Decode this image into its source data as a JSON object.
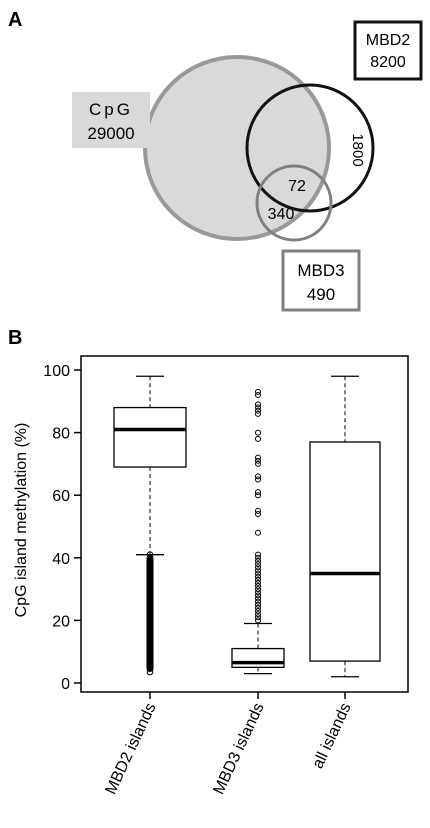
{
  "panels": {
    "a_label": "A",
    "b_label": "B"
  },
  "venn": {
    "cpg": {
      "name": "CpG",
      "count": "29000"
    },
    "mbd2": {
      "name": "MBD2",
      "count": "8200"
    },
    "mbd3": {
      "name": "MBD3",
      "count": "490"
    },
    "regions": {
      "mbd2_only": "1800",
      "triple": "72",
      "cpg_mbd3": "340"
    },
    "colors": {
      "cpg_fill": "#d9d9d9",
      "cpg_stroke": "#999999",
      "mbd2_stroke": "#111111",
      "mbd3_stroke": "#808080"
    }
  },
  "chart_data": {
    "type": "boxplot",
    "ylabel": "CpG island methylation (%)",
    "ylim": [
      0,
      100
    ],
    "yticks": [
      "0",
      "20",
      "40",
      "60",
      "80",
      "100"
    ],
    "categories": [
      "MBD2 islands",
      "MBD3 islands",
      "all islands"
    ],
    "boxes": [
      {
        "name": "MBD2 islands",
        "whisker_low": 41,
        "q1": 69,
        "median": 81,
        "q3": 88,
        "whisker_high": 98,
        "outliers_range": [
          3.5,
          41
        ]
      },
      {
        "name": "MBD3 islands",
        "whisker_low": 3,
        "q1": 5,
        "median": 6.5,
        "q3": 11,
        "whisker_high": 19,
        "outliers": [
          20,
          21,
          22,
          23,
          24,
          25,
          26,
          27,
          28,
          29,
          30,
          31,
          32,
          33,
          34,
          35,
          36,
          37,
          38,
          39,
          40,
          41,
          48,
          54,
          55,
          60,
          61,
          65,
          66,
          70,
          71,
          72,
          78,
          80,
          86,
          87,
          88,
          89,
          92,
          93
        ]
      },
      {
        "name": "all islands",
        "whisker_low": 2,
        "q1": 7,
        "median": 35,
        "q3": 77,
        "whisker_high": 98,
        "outliers": []
      }
    ]
  }
}
